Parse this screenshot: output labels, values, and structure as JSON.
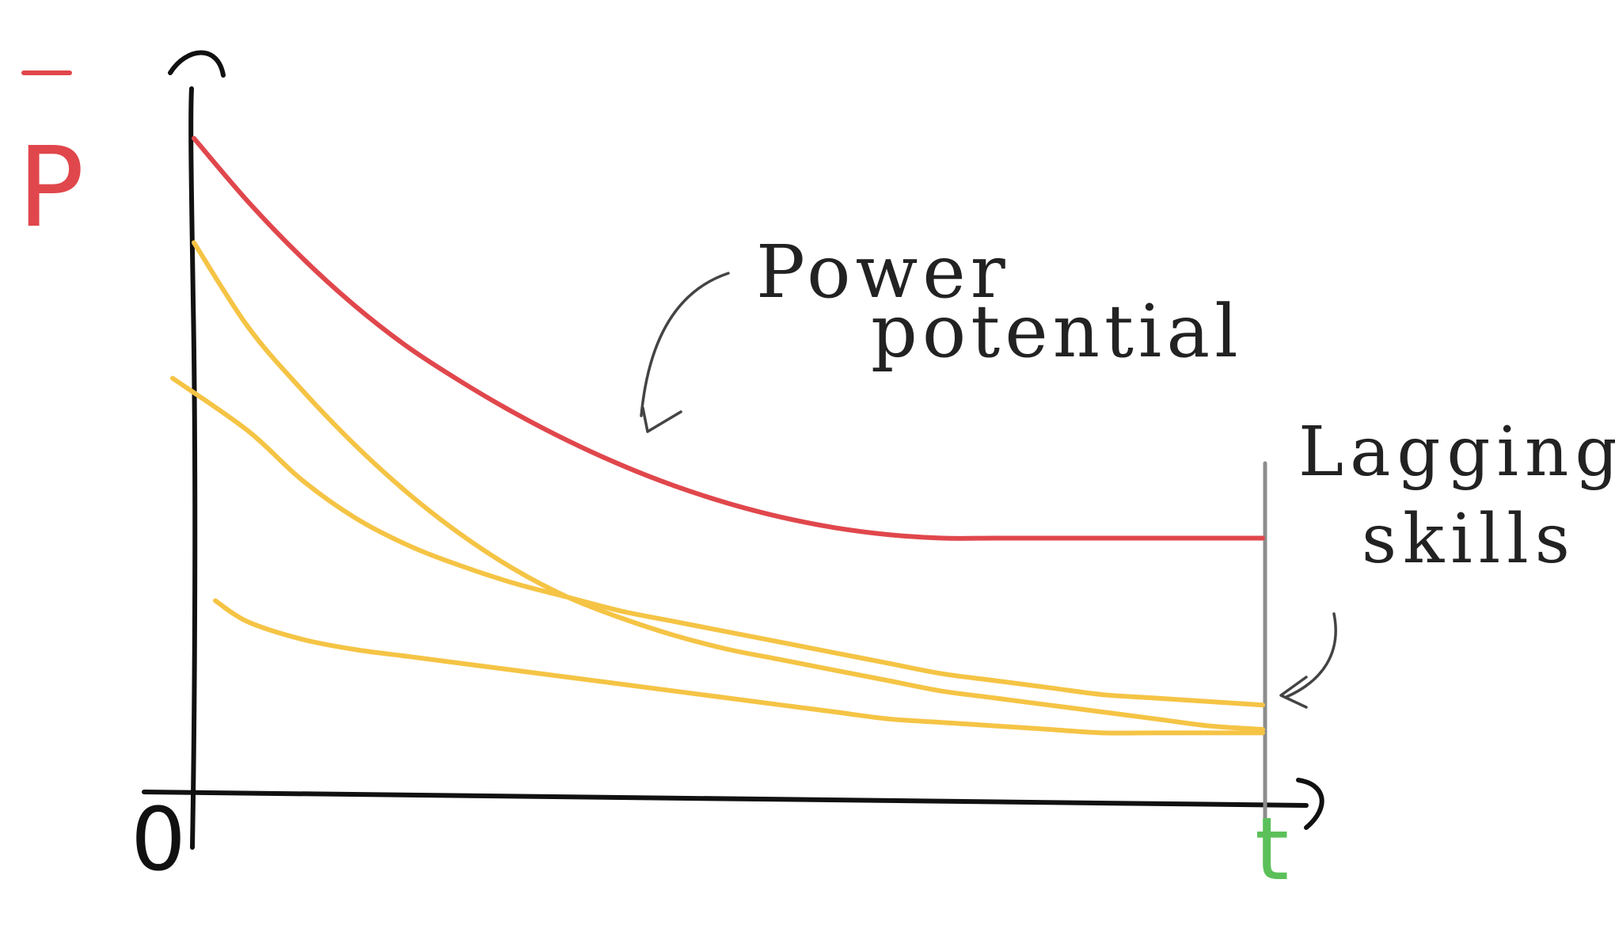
{
  "chart_data": {
    "type": "line",
    "ylabel": "P",
    "ylabel_overbar": true,
    "origin_label": "0",
    "t_end_label": "t",
    "xlim": [
      0,
      10
    ],
    "ylim": [
      0,
      10
    ],
    "grid": false,
    "colors": {
      "power_potential": "#e0474c",
      "skills": "#f5c445",
      "axes": "#111111",
      "end_line": "#8c8c8c",
      "ylabel": "#e0474c",
      "t_label": "#5cc05a",
      "annotations": "#222222"
    },
    "series": [
      {
        "name": "Power potential",
        "color": "#e0474c",
        "x": [
          0,
          0.5,
          1,
          1.5,
          2,
          2.5,
          3,
          3.5,
          4,
          4.5,
          5,
          5.5,
          6,
          6.5,
          7,
          7.5,
          8,
          8.5,
          9,
          9.5,
          10
        ],
        "y": [
          9.4,
          8.5,
          7.7,
          7.0,
          6.4,
          5.9,
          5.45,
          5.05,
          4.7,
          4.4,
          4.15,
          3.95,
          3.8,
          3.7,
          3.65,
          3.65,
          3.65,
          3.65,
          3.65,
          3.65,
          3.65
        ]
      },
      {
        "color": "#f5c445",
        "x": [
          0,
          0.5,
          1,
          1.5,
          2,
          2.5,
          3,
          3.5,
          4,
          4.5,
          5,
          5.5,
          6,
          6.5,
          7,
          7.5,
          8,
          8.5,
          9,
          9.5,
          10
        ],
        "y": [
          7.9,
          6.7,
          5.8,
          5.0,
          4.3,
          3.7,
          3.2,
          2.8,
          2.5,
          2.25,
          2.05,
          1.9,
          1.75,
          1.6,
          1.45,
          1.35,
          1.25,
          1.15,
          1.05,
          0.95,
          0.9
        ]
      },
      {
        "color": "#f5c445",
        "x": [
          -0.2,
          0.5,
          1,
          1.5,
          2,
          2.5,
          3,
          3.5,
          4,
          4.5,
          5,
          5.5,
          6,
          6.5,
          7,
          7.5,
          8,
          8.5,
          9,
          9.5,
          10
        ],
        "y": [
          5.95,
          5.2,
          4.5,
          3.95,
          3.55,
          3.25,
          3.0,
          2.8,
          2.6,
          2.45,
          2.3,
          2.15,
          2.0,
          1.85,
          1.7,
          1.6,
          1.5,
          1.4,
          1.35,
          1.3,
          1.25
        ]
      },
      {
        "color": "#f5c445",
        "x": [
          0.2,
          0.5,
          1,
          1.5,
          2,
          2.5,
          3,
          3.5,
          4,
          4.5,
          5,
          5.5,
          6,
          6.5,
          7,
          7.5,
          8,
          8.5,
          9,
          9.5,
          10
        ],
        "y": [
          2.75,
          2.45,
          2.2,
          2.05,
          1.95,
          1.85,
          1.75,
          1.65,
          1.55,
          1.45,
          1.35,
          1.25,
          1.15,
          1.05,
          1.0,
          0.95,
          0.9,
          0.85,
          0.85,
          0.85,
          0.85
        ]
      }
    ],
    "annotations": [
      {
        "text_lines": [
          "Power",
          "potential"
        ],
        "color": "#222222"
      },
      {
        "text_lines": [
          "Lagging",
          "skills"
        ],
        "color": "#222222"
      }
    ],
    "end_line_at_x": 10
  }
}
